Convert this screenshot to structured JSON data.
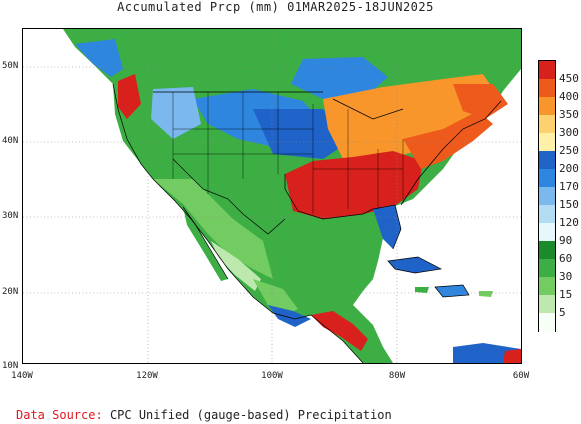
{
  "title": "Accumulated Prcp (mm) 01MAR2025-18JUN2025",
  "lat_labels": [
    "50N",
    "40N",
    "30N",
    "20N",
    "10N"
  ],
  "lon_labels": [
    "140W",
    "120W",
    "100W",
    "80W",
    "60W"
  ],
  "legend": {
    "levels": [
      "450",
      "400",
      "350",
      "300",
      "250",
      "200",
      "170",
      "150",
      "120",
      "90",
      "60",
      "30",
      "15",
      "5"
    ],
    "colors": [
      "#d8201c",
      "#ee5a1c",
      "#f8962c",
      "#fdd070",
      "#fff0a8",
      "#1f62c8",
      "#2e86df",
      "#7ab8ee",
      "#b2dcf4",
      "#e6f8fc",
      "#1b8a2b",
      "#3cae44",
      "#72cc62",
      "#bde8ae",
      "#f8fff6"
    ]
  },
  "source": {
    "label": "Data Source:",
    "text": "CPC Unified (gauge-based) Precipitation"
  }
}
